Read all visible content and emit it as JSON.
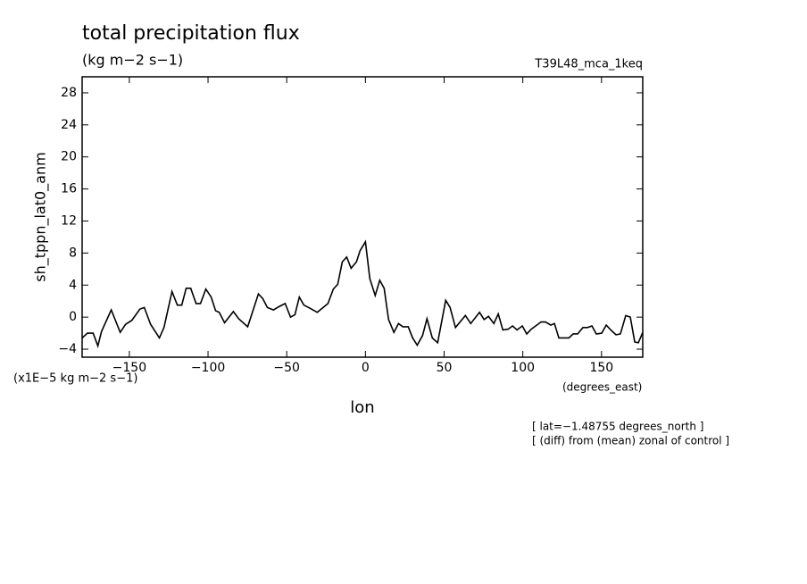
{
  "chart_data": {
    "type": "line",
    "title": "total precipitation flux",
    "subtitle": "(kg m−2 s−1)",
    "run_label": "T39L48_mca_1keq",
    "y_label": "sh_tppn_lat0_anm",
    "y_units": "(x1E−5 kg m−2 s−1)",
    "x_label": "lon",
    "x_units": "(degrees_east)",
    "notes": [
      "[ lat=−1.48755 degrees_north ]",
      "[ (diff) from (mean) zonal of control ]"
    ],
    "color": "#000000",
    "xlim": [
      -180,
      176.2
    ],
    "ylim": [
      -5,
      30
    ],
    "xticks": [
      {
        "value": -150,
        "label": "−150"
      },
      {
        "value": -100,
        "label": "−100"
      },
      {
        "value": -50,
        "label": "−50"
      },
      0,
      50,
      100,
      150
    ],
    "yticks": [
      {
        "value": -4,
        "label": "−4"
      },
      0,
      4,
      8,
      12,
      16,
      20,
      24,
      28
    ],
    "x": [
      -180,
      -176.6,
      -173,
      -170,
      -167.7,
      -161.5,
      -155.8,
      -152.4,
      -148.4,
      -143.3,
      -140.5,
      -136.5,
      -130.9,
      -128,
      -122.9,
      -119.5,
      -116.7,
      -113.9,
      -111,
      -107.6,
      -104.8,
      -101.4,
      -98,
      -95.2,
      -92.9,
      -89.5,
      -83.9,
      -80.5,
      -74.8,
      -68,
      -65.2,
      -62.3,
      -58.4,
      -55,
      -51,
      -47.6,
      -44.8,
      -42,
      -39.1,
      -35.1,
      -30.6,
      -23.8,
      -20.4,
      -17.6,
      -14.7,
      -11.9,
      -9.1,
      -5.7,
      -3.4,
      0,
      2.8,
      6.2,
      9.1,
      11.9,
      14.7,
      18.1,
      21,
      23.8,
      27.2,
      30,
      32.9,
      36.3,
      39.1,
      42.5,
      45.9,
      51,
      53.8,
      57.2,
      63.5,
      66.9,
      72.5,
      75.4,
      78.2,
      81.6,
      84.4,
      87.3,
      90.7,
      93.5,
      96.3,
      99.7,
      102.5,
      105.4,
      111.6,
      114.4,
      117.8,
      120.1,
      122.9,
      129.2,
      132,
      134.8,
      138.2,
      141.1,
      143.9,
      146.7,
      150.1,
      153,
      156.4,
      159.2,
      162,
      165.4,
      168.3,
      171.1,
      173.4,
      176.2
    ],
    "values": [
      -2.6,
      -2,
      -2,
      -3.6,
      -1.8,
      0.9,
      -1.9,
      -0.9,
      -0.4,
      1,
      1.2,
      -0.9,
      -2.6,
      -1.3,
      3.2,
      1.5,
      1.5,
      3.6,
      3.6,
      1.7,
      1.7,
      3.5,
      2.5,
      0.8,
      0.6,
      -0.7,
      0.7,
      -0.2,
      -1.2,
      2.9,
      2.3,
      1.2,
      0.9,
      1.3,
      1.7,
      0,
      0.3,
      2.5,
      1.5,
      1.1,
      0.6,
      1.7,
      3.5,
      4.1,
      6.9,
      7.5,
      6.1,
      6.9,
      8.3,
      9.4,
      4.8,
      2.7,
      4.6,
      3.6,
      -0.3,
      -1.9,
      -0.8,
      -1.2,
      -1.2,
      -2.6,
      -3.5,
      -2.3,
      -0.2,
      -2.6,
      -3.2,
      2.1,
      1.2,
      -1.3,
      0.2,
      -0.8,
      0.6,
      -0.3,
      0.1,
      -0.8,
      0.4,
      -1.6,
      -1.5,
      -1.1,
      -1.6,
      -1.1,
      -2.1,
      -1.5,
      -0.6,
      -0.6,
      -1,
      -0.8,
      -2.6,
      -2.6,
      -2.1,
      -2.1,
      -1.3,
      -1.3,
      -1.1,
      -2.1,
      -2,
      -1,
      -1.7,
      -2.2,
      -2.1,
      0.2,
      0,
      -3.1,
      -3.2,
      -1.9
    ]
  }
}
